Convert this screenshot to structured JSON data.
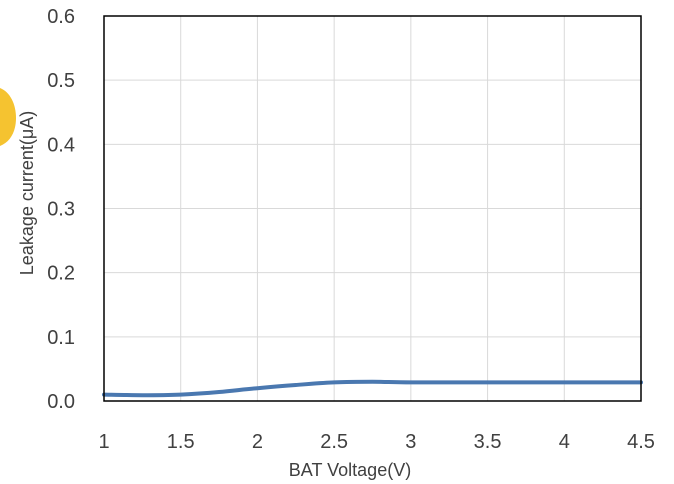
{
  "chart_data": {
    "type": "line",
    "title": "",
    "xlabel": "BAT Voltage(V)",
    "ylabel": "Leakage current(μA)",
    "xlim": [
      1,
      4.5
    ],
    "ylim": [
      0,
      0.6
    ],
    "x_ticks": [
      "1",
      "1.5",
      "2",
      "2.5",
      "3",
      "3.5",
      "4",
      "4.5"
    ],
    "y_ticks": [
      "0.0",
      "0.1",
      "0.2",
      "0.3",
      "0.4",
      "0.5",
      "0.6"
    ],
    "grid": true,
    "legend": "none",
    "series": [
      {
        "color": "#4a78b0",
        "x": [
          1,
          1.25,
          1.5,
          1.75,
          2,
          2.25,
          2.5,
          2.75,
          3,
          3.5,
          4,
          4.5
        ],
        "y": [
          0.01,
          0.009,
          0.01,
          0.014,
          0.02,
          0.025,
          0.029,
          0.03,
          0.029,
          0.029,
          0.029,
          0.029
        ]
      }
    ]
  }
}
